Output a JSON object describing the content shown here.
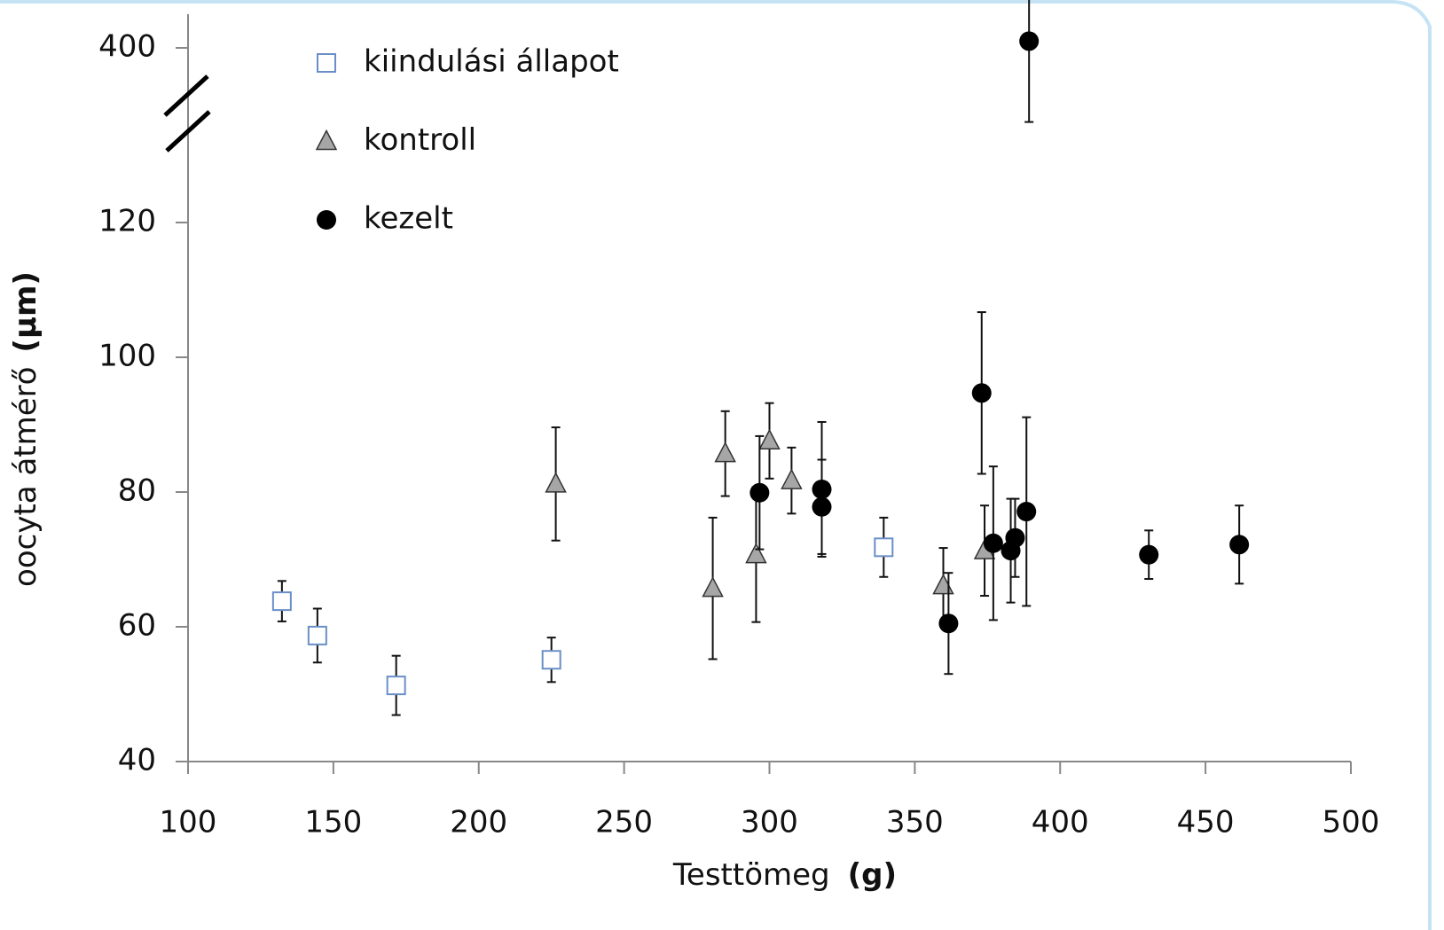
{
  "chart_data": {
    "type": "scatter",
    "xlabel": "Testtömeg",
    "xlabel_unit": "(g)",
    "ylabel": "oocyta átmérő",
    "ylabel_unit": "(µm)",
    "xlim": [
      100,
      500
    ],
    "xticks": [
      100,
      150,
      200,
      250,
      300,
      350,
      400,
      450,
      500
    ],
    "ylim": [
      40,
      405
    ],
    "ybreak": [
      130,
      390
    ],
    "yticks": [
      40,
      60,
      80,
      100,
      120,
      400
    ],
    "legend": "upper left",
    "series": [
      {
        "name": "kiindulási állapot",
        "marker": "square",
        "color": "#6a8fc7",
        "x": [
          132.3,
          144.5,
          171.6,
          225,
          339.3
        ],
        "values": [
          63.8,
          58.7,
          51.3,
          55.1,
          71.8
        ],
        "errors": [
          3,
          4,
          4.4,
          3.3,
          4.4
        ]
      },
      {
        "name": "kontroll",
        "marker": "triangle",
        "color": "#a6a6a6",
        "x": [
          226.5,
          280.5,
          284.8,
          295.4,
          300,
          307.6,
          359.8,
          374
        ],
        "values": [
          81.2,
          65.7,
          85.7,
          70.7,
          87.6,
          81.7,
          66.1,
          71.3
        ],
        "errors": [
          8.4,
          10.5,
          6.3,
          10,
          5.6,
          4.9,
          5.6,
          6.7
        ]
      },
      {
        "name": "kezelt",
        "marker": "circle",
        "color": "#000000",
        "x": [
          296.6,
          318,
          318,
          361.6,
          373,
          377,
          383,
          384.5,
          388.4,
          389.3,
          430.5,
          461.6
        ],
        "values": [
          79.9,
          80.4,
          77.8,
          60.5,
          94.7,
          72.4,
          71.3,
          73.2,
          77.1,
          401,
          70.7,
          72.2
        ],
        "errors": [
          8.4,
          10,
          7,
          7.5,
          12,
          11.4,
          7.7,
          5.8,
          14,
          12,
          3.6,
          5.8
        ]
      }
    ]
  }
}
